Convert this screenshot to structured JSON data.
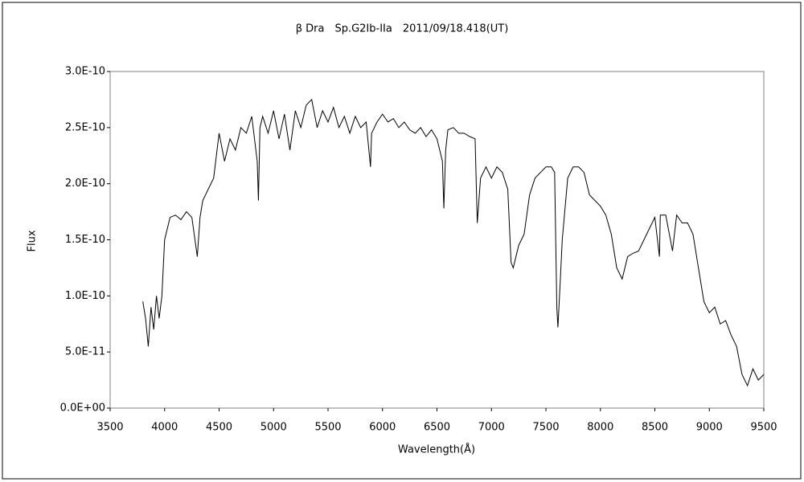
{
  "chart_data": {
    "type": "line",
    "title": "β Dra　Sp.G2Ib-IIa　2011/09/18.418(UT)",
    "x_label": "Wavelength(Å)",
    "y_label": "Flux",
    "color": "#000000",
    "xlim": [
      3500,
      9500
    ],
    "xticks": [
      3500,
      4000,
      4500,
      5000,
      5500,
      6000,
      6500,
      7000,
      7500,
      8000,
      8500,
      9000,
      9500
    ],
    "ylim": [
      0,
      3e-10
    ],
    "yticks": [
      {
        "value": 0,
        "label": "0.0E+00"
      },
      {
        "value": 5e-11,
        "label": "5.0E-11"
      },
      {
        "value": 1e-10,
        "label": "1.0E-10"
      },
      {
        "value": 1.5e-10,
        "label": "1.5E-10"
      },
      {
        "value": 2e-10,
        "label": "2.0E-10"
      },
      {
        "value": 2.5e-10,
        "label": "2.5E-10"
      },
      {
        "value": 3e-10,
        "label": "3.0E-10"
      }
    ],
    "x": [
      3800,
      3825,
      3850,
      3875,
      3900,
      3925,
      3950,
      3975,
      4000,
      4050,
      4100,
      4150,
      4200,
      4250,
      4300,
      4325,
      4350,
      4400,
      4450,
      4500,
      4550,
      4600,
      4650,
      4700,
      4750,
      4800,
      4850,
      4861,
      4875,
      4900,
      4950,
      5000,
      5050,
      5100,
      5150,
      5200,
      5250,
      5300,
      5350,
      5400,
      5450,
      5500,
      5550,
      5600,
      5650,
      5700,
      5750,
      5800,
      5850,
      5890,
      5900,
      5950,
      6000,
      6050,
      6100,
      6150,
      6200,
      6250,
      6300,
      6350,
      6400,
      6450,
      6500,
      6550,
      6563,
      6580,
      6600,
      6650,
      6700,
      6750,
      6800,
      6850,
      6870,
      6900,
      6950,
      7000,
      7050,
      7100,
      7150,
      7180,
      7200,
      7250,
      7300,
      7350,
      7400,
      7450,
      7500,
      7550,
      7580,
      7600,
      7610,
      7630,
      7650,
      7700,
      7750,
      7800,
      7850,
      7900,
      7950,
      8000,
      8050,
      8100,
      8150,
      8200,
      8250,
      8300,
      8350,
      8400,
      8450,
      8500,
      8542,
      8550,
      8600,
      8662,
      8700,
      8750,
      8800,
      8850,
      8900,
      8950,
      9000,
      9050,
      9100,
      9150,
      9200,
      9250,
      9300,
      9350,
      9400,
      9450,
      9500
    ],
    "values": [
      9.5e-11,
      8e-11,
      5.5e-11,
      9e-11,
      7e-11,
      1e-10,
      8e-11,
      1e-10,
      1.5e-10,
      1.7e-10,
      1.72e-10,
      1.68e-10,
      1.75e-10,
      1.7e-10,
      1.35e-10,
      1.7e-10,
      1.85e-10,
      1.95e-10,
      2.05e-10,
      2.45e-10,
      2.2e-10,
      2.4e-10,
      2.3e-10,
      2.5e-10,
      2.45e-10,
      2.6e-10,
      2.2e-10,
      1.85e-10,
      2.5e-10,
      2.6e-10,
      2.45e-10,
      2.65e-10,
      2.4e-10,
      2.62e-10,
      2.3e-10,
      2.65e-10,
      2.5e-10,
      2.7e-10,
      2.75e-10,
      2.5e-10,
      2.65e-10,
      2.55e-10,
      2.68e-10,
      2.5e-10,
      2.6e-10,
      2.45e-10,
      2.6e-10,
      2.5e-10,
      2.55e-10,
      2.15e-10,
      2.45e-10,
      2.55e-10,
      2.62e-10,
      2.55e-10,
      2.58e-10,
      2.5e-10,
      2.55e-10,
      2.48e-10,
      2.45e-10,
      2.5e-10,
      2.42e-10,
      2.48e-10,
      2.4e-10,
      2.2e-10,
      1.78e-10,
      2.3e-10,
      2.48e-10,
      2.5e-10,
      2.45e-10,
      2.45e-10,
      2.42e-10,
      2.4e-10,
      1.65e-10,
      2.05e-10,
      2.15e-10,
      2.05e-10,
      2.15e-10,
      2.1e-10,
      1.95e-10,
      1.3e-10,
      1.25e-10,
      1.45e-10,
      1.55e-10,
      1.9e-10,
      2.05e-10,
      2.1e-10,
      2.15e-10,
      2.15e-10,
      2.1e-10,
      9e-11,
      7.2e-11,
      1.1e-10,
      1.5e-10,
      2.05e-10,
      2.15e-10,
      2.15e-10,
      2.1e-10,
      1.9e-10,
      1.85e-10,
      1.8e-10,
      1.72e-10,
      1.55e-10,
      1.25e-10,
      1.15e-10,
      1.35e-10,
      1.38e-10,
      1.4e-10,
      1.5e-10,
      1.6e-10,
      1.7e-10,
      1.35e-10,
      1.72e-10,
      1.72e-10,
      1.4e-10,
      1.72e-10,
      1.65e-10,
      1.65e-10,
      1.55e-10,
      1.25e-10,
      9.5e-11,
      8.5e-11,
      9e-11,
      7.5e-11,
      7.8e-11,
      6.5e-11,
      5.5e-11,
      3e-11,
      2e-11,
      3.5e-11,
      2.5e-11,
      3e-11
    ]
  }
}
